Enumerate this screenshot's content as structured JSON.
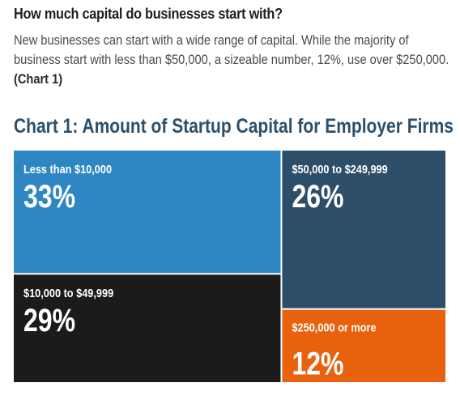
{
  "heading": "How much capital do businesses start with?",
  "intro": {
    "line1": "New businesses can start with a wide range of capital. While the majority of",
    "line2": "business start with less than $50,000, a sizeable number, 12%, use over $250,000.",
    "ref": "(Chart 1)"
  },
  "chart_title": "Chart 1: Amount of Startup Capital for Employer Firms",
  "chart_data": {
    "type": "treemap",
    "title": "Chart 1: Amount of Startup Capital for Employer Firms",
    "unit": "%",
    "items": [
      {
        "label": "Less than $10,000",
        "value": 33,
        "display": "33%",
        "color": "#2e87c2"
      },
      {
        "label": "$10,000 to $49,999",
        "value": 29,
        "display": "29%",
        "color": "#1b1b1b"
      },
      {
        "label": "$50,000 to $249,999",
        "value": 26,
        "display": "26%",
        "color": "#2d4e68"
      },
      {
        "label": "$250,000 or more",
        "value": 12,
        "display": "12%",
        "color": "#e8620e"
      }
    ]
  }
}
